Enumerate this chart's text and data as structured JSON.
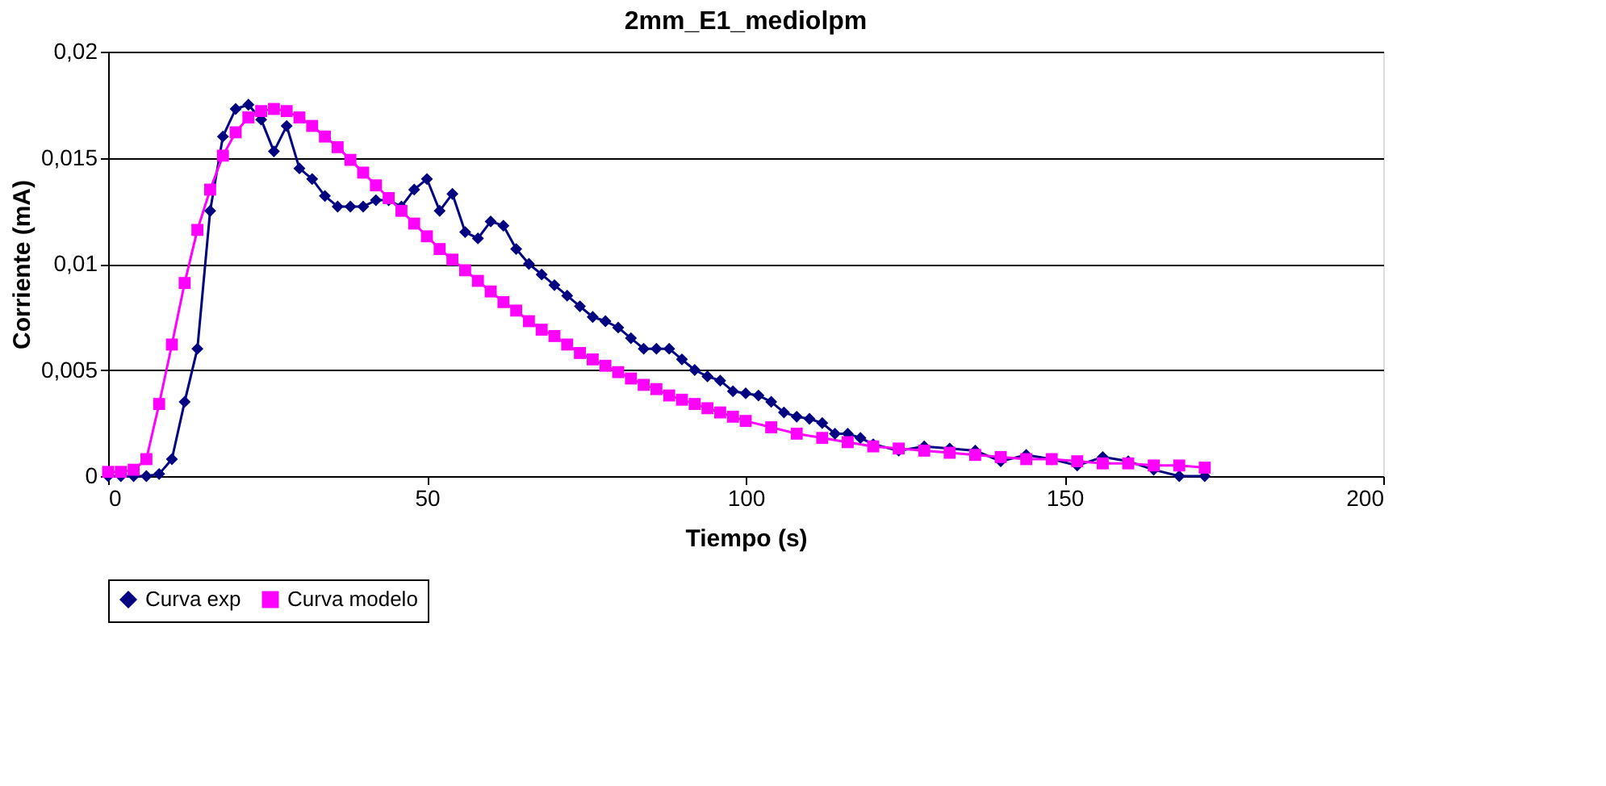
{
  "chart_data": {
    "type": "line",
    "title": "2mm_E1_mediolpm",
    "xlabel": "Tiempo (s)",
    "ylabel": "Corriente (mA)",
    "xlim": [
      0,
      200
    ],
    "xticks": [
      0,
      50,
      100,
      150,
      200
    ],
    "ylim": [
      0,
      0.02
    ],
    "yticks": [
      {
        "value": 0,
        "label": "0"
      },
      {
        "value": 0.005,
        "label": "0,005"
      },
      {
        "value": 0.01,
        "label": "0,01"
      },
      {
        "value": 0.015,
        "label": "0,015"
      },
      {
        "value": 0.02,
        "label": "0,02"
      }
    ],
    "grid": "y",
    "legend": "bottom",
    "line_style": "solid",
    "series": [
      {
        "name": "Curva exp",
        "color": "#000080",
        "marker": "diamond",
        "x": [
          0,
          2,
          4,
          6,
          8,
          10,
          12,
          14,
          16,
          18,
          20,
          22,
          24,
          26,
          28,
          30,
          32,
          34,
          36,
          38,
          40,
          42,
          44,
          46,
          48,
          50,
          52,
          54,
          56,
          58,
          60,
          62,
          64,
          66,
          68,
          70,
          72,
          74,
          76,
          78,
          80,
          82,
          84,
          86,
          88,
          90,
          92,
          94,
          96,
          98,
          100,
          102,
          104,
          106,
          108,
          110,
          112,
          114,
          116,
          118,
          120,
          124,
          128,
          132,
          136,
          140,
          144,
          148,
          152,
          156,
          160,
          164,
          168,
          172
        ],
        "values": [
          0,
          0,
          0,
          0,
          0.0001,
          0.0008,
          0.0035,
          0.006,
          0.0125,
          0.016,
          0.0173,
          0.0175,
          0.0168,
          0.0153,
          0.0165,
          0.0145,
          0.014,
          0.0132,
          0.0127,
          0.0127,
          0.0127,
          0.013,
          0.013,
          0.0127,
          0.0135,
          0.014,
          0.0125,
          0.0133,
          0.0115,
          0.0112,
          0.012,
          0.0118,
          0.0107,
          0.01,
          0.0095,
          0.009,
          0.0085,
          0.008,
          0.0075,
          0.0073,
          0.007,
          0.0065,
          0.006,
          0.006,
          0.006,
          0.0055,
          0.005,
          0.0047,
          0.0045,
          0.004,
          0.0039,
          0.0038,
          0.0035,
          0.003,
          0.0028,
          0.0027,
          0.0025,
          0.002,
          0.002,
          0.0018,
          0.0015,
          0.0012,
          0.0014,
          0.0013,
          0.0012,
          0.0007,
          0.001,
          0.0008,
          0.0005,
          0.0009,
          0.0007,
          0.0003,
          0,
          0
        ]
      },
      {
        "name": "Curva modelo",
        "color": "#ff00ff",
        "marker": "square",
        "x": [
          0,
          2,
          4,
          6,
          8,
          10,
          12,
          14,
          16,
          18,
          20,
          22,
          24,
          26,
          28,
          30,
          32,
          34,
          36,
          38,
          40,
          42,
          44,
          46,
          48,
          50,
          52,
          54,
          56,
          58,
          60,
          62,
          64,
          66,
          68,
          70,
          72,
          74,
          76,
          78,
          80,
          82,
          84,
          86,
          88,
          90,
          92,
          94,
          96,
          98,
          100,
          104,
          108,
          112,
          116,
          120,
          124,
          128,
          132,
          136,
          140,
          144,
          148,
          152,
          156,
          160,
          164,
          168,
          172
        ],
        "values": [
          0.0002,
          0.0002,
          0.0003,
          0.0008,
          0.0034,
          0.0062,
          0.0091,
          0.0116,
          0.0135,
          0.0151,
          0.0162,
          0.0169,
          0.0172,
          0.0173,
          0.0172,
          0.0169,
          0.0165,
          0.016,
          0.0155,
          0.0149,
          0.0143,
          0.0137,
          0.0131,
          0.0125,
          0.0119,
          0.0113,
          0.0107,
          0.0102,
          0.0097,
          0.0092,
          0.0087,
          0.0082,
          0.0078,
          0.0073,
          0.0069,
          0.0066,
          0.0062,
          0.0058,
          0.0055,
          0.0052,
          0.0049,
          0.0046,
          0.0043,
          0.0041,
          0.0038,
          0.0036,
          0.0034,
          0.0032,
          0.003,
          0.0028,
          0.0026,
          0.0023,
          0.002,
          0.0018,
          0.0016,
          0.0014,
          0.0013,
          0.0012,
          0.0011,
          0.001,
          0.0009,
          0.0008,
          0.0008,
          0.0007,
          0.0006,
          0.0006,
          0.0005,
          0.0005,
          0.0004
        ]
      }
    ]
  }
}
